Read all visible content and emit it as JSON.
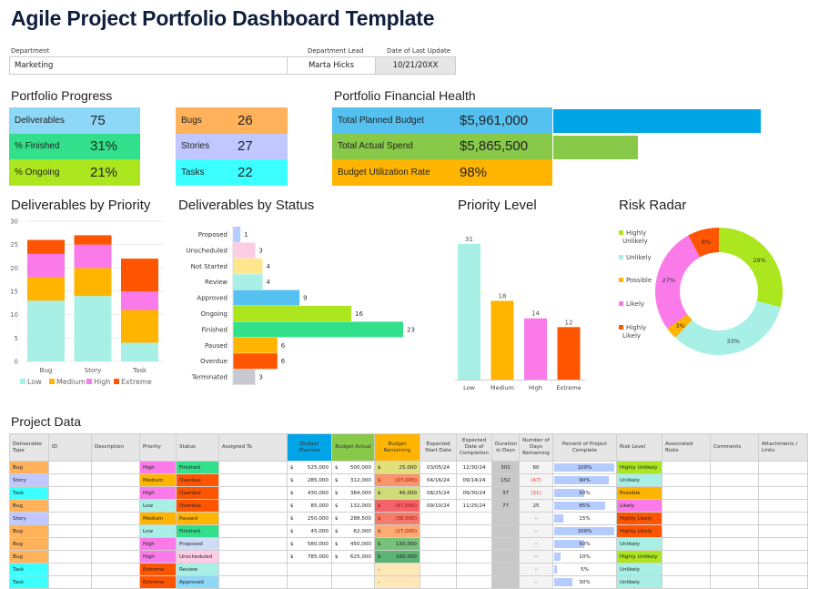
{
  "title": "Agile Project Portfolio Dashboard Template",
  "header": {
    "department_label": "Department",
    "department": "Marketing",
    "lead_label": "Department Lead",
    "lead": "Marta Hicks",
    "date_label": "Date of Last Update",
    "date": "10/21/20XX"
  },
  "progress": {
    "title": "Portfolio Progress",
    "items": [
      {
        "label": "Deliverables",
        "value": "75",
        "color": "#8dd7f7"
      },
      {
        "label": "% Finished",
        "value": "31%",
        "color": "#32e08c"
      },
      {
        "label": "% Ongoing",
        "value": "21%",
        "color": "#abe61e"
      }
    ],
    "types": [
      {
        "label": "Bugs",
        "value": "26",
        "color": "#ffb25a"
      },
      {
        "label": "Stories",
        "value": "27",
        "color": "#c0c8ff"
      },
      {
        "label": "Tasks",
        "value": "22",
        "color": "#3cffff"
      }
    ]
  },
  "financial": {
    "title": "Portfolio Financial Health",
    "items": [
      {
        "label": "Total Planned Budget",
        "value": "$5,961,000",
        "amount": 5961000,
        "color": "#55c1f0",
        "bar_color": "#00a5e8"
      },
      {
        "label": "Total Actual Spend",
        "value": "$5,865,500",
        "amount": 5865500,
        "color": "#88c94a",
        "bar_color": "#88c94a"
      },
      {
        "label": "Budget Utilization Rate",
        "value": "98%",
        "color": "#ffb400"
      }
    ]
  },
  "chart_data": [
    {
      "type": "bar",
      "stacked": true,
      "title": "Deliverables by Priority",
      "categories": [
        "Bug",
        "Story",
        "Task"
      ],
      "ylim": [
        0,
        30
      ],
      "yticks": [
        0,
        5,
        10,
        15,
        20,
        25,
        30
      ],
      "grid": true,
      "legend": "bottom",
      "series": [
        {
          "name": "Low",
          "values": [
            13,
            14,
            4
          ],
          "color": "#a8f0e6"
        },
        {
          "name": "Medium",
          "values": [
            5,
            6,
            7
          ],
          "color": "#ffb400"
        },
        {
          "name": "High",
          "values": [
            5,
            5,
            4
          ],
          "color": "#f97ae8"
        },
        {
          "name": "Extreme",
          "values": [
            3,
            2,
            7
          ],
          "color": "#ff5500"
        }
      ]
    },
    {
      "type": "bar",
      "orientation": "horizontal",
      "title": "Deliverables by Status",
      "categories": [
        "Proposed",
        "Unscheduled",
        "Not Started",
        "Review",
        "Approved",
        "Ongoing",
        "Finished",
        "Paused",
        "Overdue",
        "Terminated"
      ],
      "values": [
        1,
        3,
        4,
        4,
        9,
        16,
        23,
        6,
        6,
        3
      ],
      "colors": [
        "#b4ccff",
        "#ffcce6",
        "#ffe68c",
        "#a8f0e6",
        "#55c1f0",
        "#abe61e",
        "#32e08c",
        "#ffb400",
        "#ff5500",
        "#c8c8d2"
      ]
    },
    {
      "type": "bar",
      "title": "Priority Level",
      "categories": [
        "Low",
        "Medium",
        "High",
        "Extreme"
      ],
      "values": [
        31,
        18,
        14,
        12
      ],
      "colors": [
        "#a8f0e6",
        "#ffb400",
        "#f97ae8",
        "#ff5500"
      ]
    },
    {
      "type": "pie",
      "donut": true,
      "title": "Risk Radar",
      "legend": "left",
      "categories": [
        "Highly Unlikely",
        "Unlikely",
        "Possible",
        "Likely",
        "Highly Likely"
      ],
      "values": [
        29,
        33,
        3,
        27,
        8
      ],
      "labels": [
        "29%",
        "33%",
        "3%",
        "27%",
        "8%"
      ],
      "colors": [
        "#abe61e",
        "#a8f0e6",
        "#ffb400",
        "#f97ae8",
        "#ff5500"
      ]
    }
  ],
  "table": {
    "title": "Project Data",
    "columns": [
      "Deliverable Type",
      "ID",
      "Description",
      "Priority",
      "Status",
      "Assigned To",
      "Budget Planned",
      "Budget Actual",
      "Budget Remaining",
      "Expected Start Date",
      "Expected Date of Completion",
      "Duration in Days",
      "Number of Days Remaining",
      "Percent of Project Complete",
      "Risk Level",
      "Associated Risks",
      "Comments",
      "Attachments / Links"
    ],
    "rows": [
      {
        "type": "Bug",
        "priority": "High",
        "status": "Finished",
        "planned": "525,000",
        "actual": "500,000",
        "remaining": "25,000",
        "rem_color": "#e1e07a",
        "start": "03/05/24",
        "end": "12/30/24",
        "duration": "301",
        "days_left": "60",
        "pct": 100,
        "pct_label": "100%",
        "risk": "Highly Unlikely"
      },
      {
        "type": "Story",
        "priority": "Medium",
        "status": "Overdue",
        "planned": "285,000",
        "actual": "312,000",
        "remaining": "(27,000)",
        "rem_color": "#f8956a",
        "start": "04/16/24",
        "end": "09/14/24",
        "duration": "152",
        "days_left": "(47)",
        "pct": 90,
        "pct_label": "90%",
        "risk": "Unlikely"
      },
      {
        "type": "Task",
        "priority": "High",
        "status": "Overdue",
        "planned": "430,000",
        "actual": "384,000",
        "remaining": "46,000",
        "rem_color": "#cfdc78",
        "start": "08/25/24",
        "end": "09/30/24",
        "duration": "37",
        "days_left": "(31)",
        "pct": 50,
        "pct_label": "50%",
        "risk": "Possible"
      },
      {
        "type": "Bug",
        "priority": "Low",
        "status": "Overdue",
        "planned": "85,000",
        "actual": "132,000",
        "remaining": "(47,000)",
        "rem_color": "#f2646a",
        "start": "09/10/24",
        "end": "11/25/24",
        "duration": "77",
        "days_left": "25",
        "pct": 85,
        "pct_label": "85%",
        "risk": "Likely"
      },
      {
        "type": "Story",
        "priority": "Medium",
        "status": "Paused",
        "planned": "250,000",
        "actual": "288,500",
        "remaining": "(38,500)",
        "rem_color": "#f47c6a",
        "start": "",
        "end": "",
        "duration": "",
        "days_left": "–",
        "pct": 15,
        "pct_label": "15%",
        "risk": "Highly Likely"
      },
      {
        "type": "Bug",
        "priority": "Low",
        "status": "Finished",
        "planned": "45,000",
        "actual": "62,000",
        "remaining": "(17,000)",
        "rem_color": "#fcab72",
        "start": "",
        "end": "",
        "duration": "",
        "days_left": "–",
        "pct": 100,
        "pct_label": "100%",
        "risk": "Highly Likely"
      },
      {
        "type": "Bug",
        "priority": "High",
        "status": "Proposed",
        "planned": "580,000",
        "actual": "450,000",
        "remaining": "130,000",
        "rem_color": "#78c17a",
        "start": "",
        "end": "",
        "duration": "",
        "days_left": "–",
        "pct": 50,
        "pct_label": "50%",
        "risk": "Unlikely"
      },
      {
        "type": "Bug",
        "priority": "High",
        "status": "Unscheduled",
        "planned": "785,000",
        "actual": "625,000",
        "remaining": "160,000",
        "rem_color": "#5cb473",
        "start": "",
        "end": "",
        "duration": "",
        "days_left": "–",
        "pct": 10,
        "pct_label": "10%",
        "risk": "Highly Unlikely"
      },
      {
        "type": "Task",
        "priority": "Extreme",
        "status": "Review",
        "planned": "",
        "actual": "",
        "remaining": "–",
        "rem_color": "#ffe8b8",
        "start": "",
        "end": "",
        "duration": "",
        "days_left": "–",
        "pct": 5,
        "pct_label": "5%",
        "risk": "Unlikely"
      },
      {
        "type": "Task",
        "priority": "Extreme",
        "status": "Approved",
        "planned": "",
        "actual": "",
        "remaining": "–",
        "rem_color": "#ffe8b8",
        "start": "",
        "end": "",
        "duration": "",
        "days_left": "–",
        "pct": 30,
        "pct_label": "30%",
        "risk": "Unlikely"
      }
    ],
    "type_colors": {
      "Bug": "#ffb25a",
      "Story": "#c0c8ff",
      "Task": "#3cffff"
    },
    "priority_colors": {
      "Low": "#a8f0e6",
      "Medium": "#ffb400",
      "High": "#f97ae8",
      "Extreme": "#ff5500"
    },
    "status_colors": {
      "Finished": "#32e08c",
      "Overdue": "#ff5500",
      "Paused": "#ffb400",
      "Proposed": "#cfdcf8",
      "Unscheduled": "#ffcce6",
      "Review": "#a8f0e6",
      "Approved": "#8dd7f7"
    },
    "risk_colors": {
      "Highly Unlikely": "#abe61e",
      "Unlikely": "#a8f0e6",
      "Possible": "#ffb400",
      "Likely": "#f97ae8",
      "Highly Likely": "#ff5500"
    },
    "header_colors": {
      "Budget Planned": "#00a5e8",
      "Budget Actual": "#88c94a",
      "Budget Remaining": "#ffb400"
    }
  }
}
